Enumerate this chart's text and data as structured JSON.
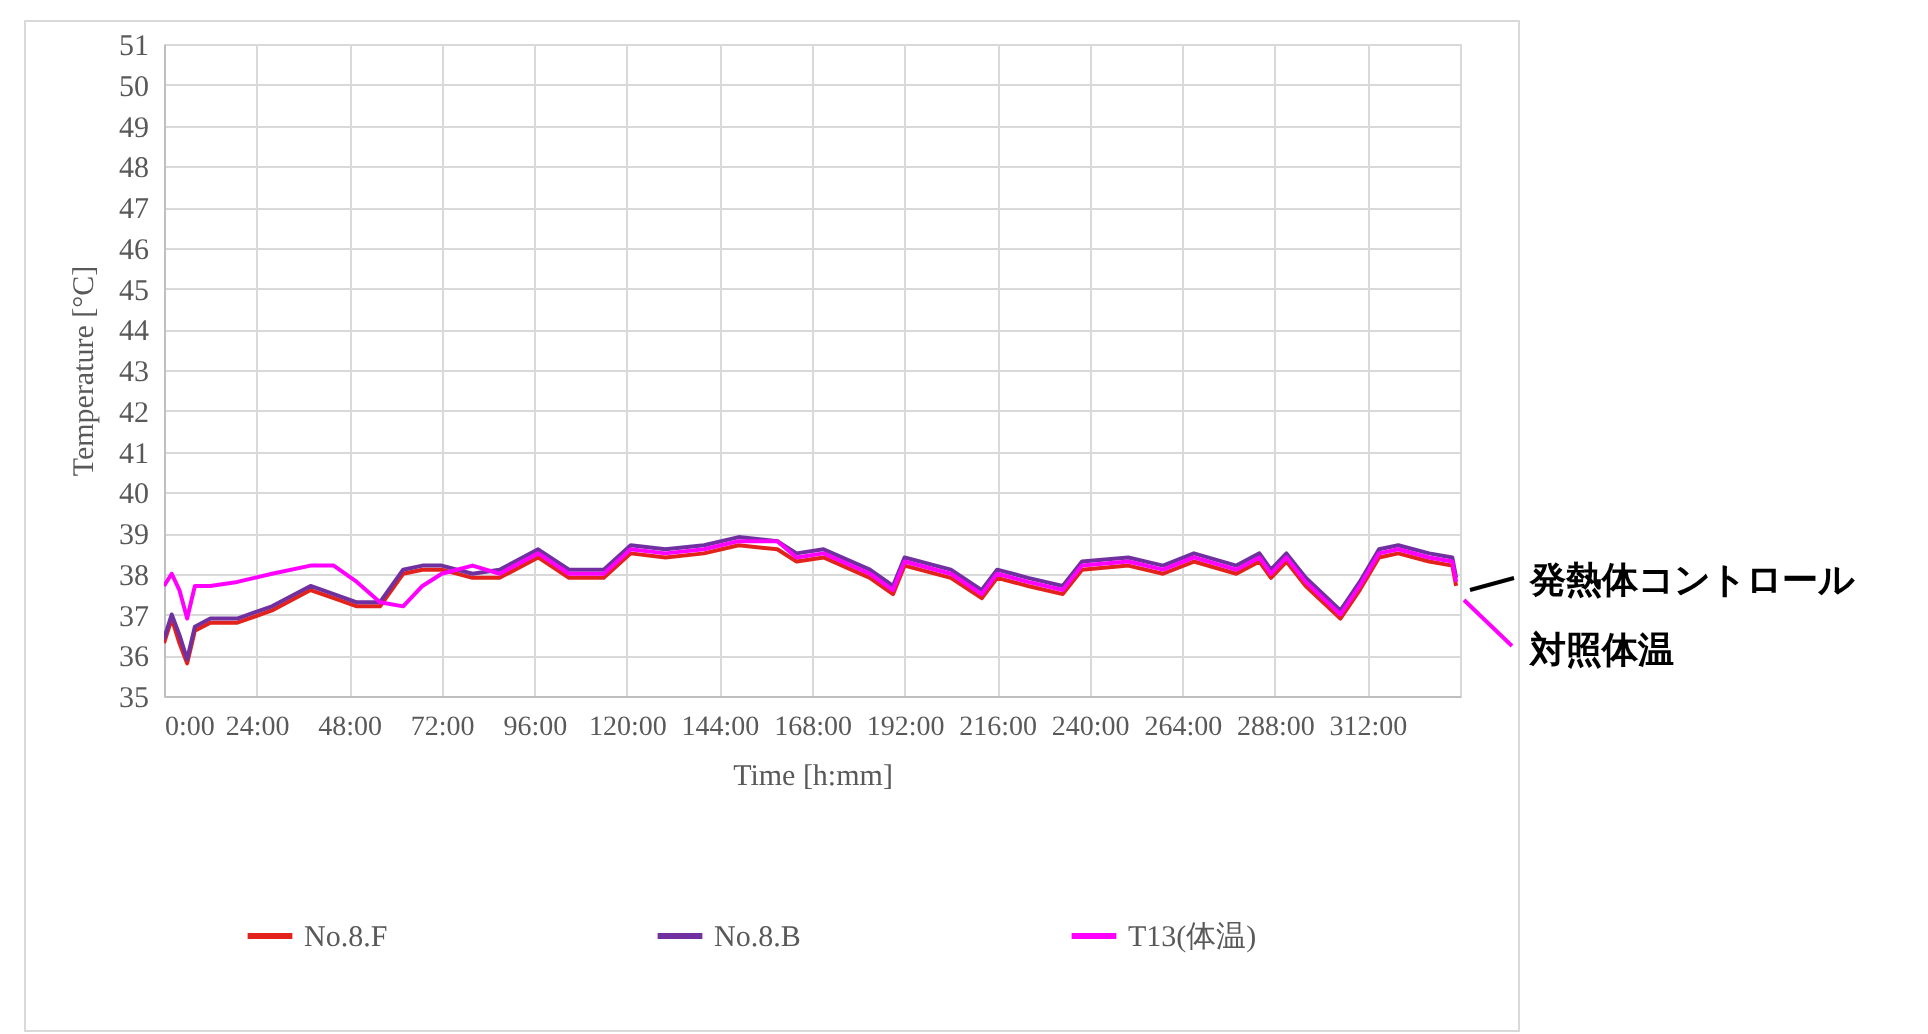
{
  "chart_data": {
    "type": "line",
    "xlabel": "Time [h:mm]",
    "ylabel": "Temperature  [°C]",
    "xlim": [
      0,
      336
    ],
    "ylim": [
      35,
      51
    ],
    "xticks": [
      {
        "value": 0,
        "label": "0:00"
      },
      {
        "value": 24,
        "label": "24:00"
      },
      {
        "value": 48,
        "label": "48:00"
      },
      {
        "value": 72,
        "label": "72:00"
      },
      {
        "value": 96,
        "label": "96:00"
      },
      {
        "value": 120,
        "label": "120:00"
      },
      {
        "value": 144,
        "label": "144:00"
      },
      {
        "value": 168,
        "label": "168:00"
      },
      {
        "value": 192,
        "label": "192:00"
      },
      {
        "value": 216,
        "label": "216:00"
      },
      {
        "value": 240,
        "label": "240:00"
      },
      {
        "value": 264,
        "label": "264:00"
      },
      {
        "value": 288,
        "label": "288:00"
      },
      {
        "value": 312,
        "label": "312:00"
      }
    ],
    "yticks": [
      35,
      36,
      37,
      38,
      39,
      40,
      41,
      42,
      43,
      44,
      45,
      46,
      47,
      48,
      49,
      50,
      51
    ],
    "grid": true,
    "legend": "bottom",
    "line_style": "solid",
    "marker": "none",
    "x": [
      0,
      2,
      4,
      6,
      8,
      12,
      19,
      28,
      38,
      44,
      50,
      56,
      62,
      67,
      72,
      80,
      87,
      97,
      105,
      114,
      121,
      130,
      140,
      149,
      159,
      164,
      171,
      183,
      189,
      192,
      204,
      212,
      216,
      224,
      233,
      238,
      250,
      259,
      267,
      278,
      284,
      287,
      291,
      296,
      305,
      310,
      315,
      320,
      328,
      334,
      335
    ],
    "series": [
      {
        "name": "No.8.F",
        "color": "#e3231b",
        "values": [
          36.3,
          36.9,
          36.3,
          35.8,
          36.6,
          36.8,
          36.8,
          37.1,
          37.6,
          37.4,
          37.2,
          37.2,
          38.0,
          38.1,
          38.1,
          37.9,
          37.9,
          38.4,
          37.9,
          37.9,
          38.5,
          38.4,
          38.5,
          38.7,
          38.6,
          38.3,
          38.4,
          37.9,
          37.5,
          38.2,
          37.9,
          37.4,
          37.9,
          37.7,
          37.5,
          38.1,
          38.2,
          38.0,
          38.3,
          38.0,
          38.3,
          37.9,
          38.3,
          37.7,
          36.9,
          37.6,
          38.4,
          38.5,
          38.3,
          38.2,
          37.7
        ]
      },
      {
        "name": "No.8.B",
        "color": "#7030a0",
        "values": [
          36.4,
          37.0,
          36.5,
          35.9,
          36.7,
          36.9,
          36.9,
          37.2,
          37.7,
          37.5,
          37.3,
          37.3,
          38.1,
          38.2,
          38.2,
          38.0,
          38.1,
          38.6,
          38.1,
          38.1,
          38.7,
          38.6,
          38.7,
          38.9,
          38.8,
          38.5,
          38.6,
          38.1,
          37.7,
          38.4,
          38.1,
          37.6,
          38.1,
          37.9,
          37.7,
          38.3,
          38.4,
          38.2,
          38.5,
          38.2,
          38.5,
          38.1,
          38.5,
          37.9,
          37.1,
          37.8,
          38.6,
          38.7,
          38.5,
          38.4,
          37.9
        ]
      },
      {
        "name": "T13(体温)",
        "color": "#ff00ff",
        "values": [
          37.7,
          38.0,
          37.6,
          36.9,
          37.7,
          37.7,
          37.8,
          38.0,
          38.2,
          38.2,
          37.8,
          37.3,
          37.2,
          37.7,
          38.0,
          38.2,
          38.0,
          38.5,
          38.0,
          38.0,
          38.6,
          38.5,
          38.6,
          38.8,
          38.8,
          38.4,
          38.5,
          38.0,
          37.6,
          38.3,
          38.0,
          37.5,
          38.0,
          37.8,
          37.6,
          38.2,
          38.3,
          38.1,
          38.4,
          38.1,
          38.4,
          38.0,
          38.4,
          37.8,
          37.0,
          37.7,
          38.5,
          38.6,
          38.4,
          38.3,
          37.8
        ]
      }
    ],
    "annotations": [
      "発熱体コントロール",
      "対照体温"
    ]
  }
}
